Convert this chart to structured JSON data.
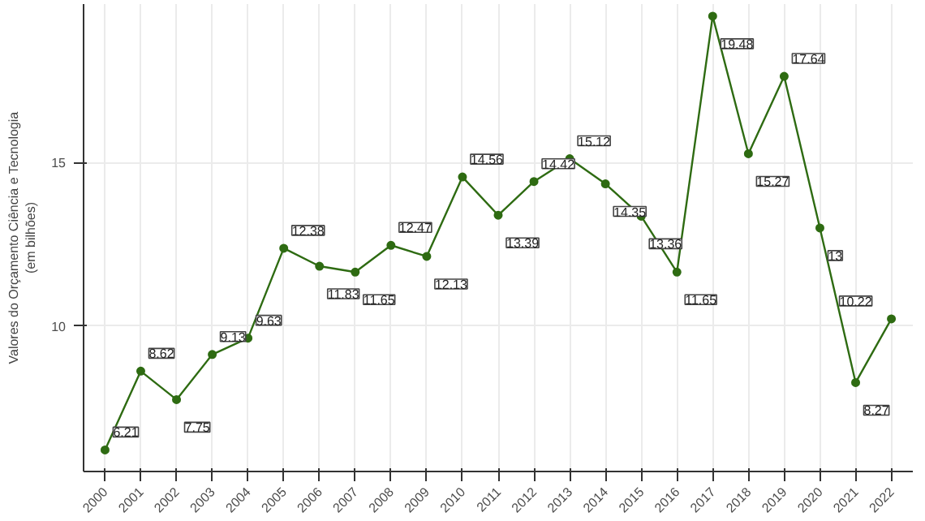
{
  "chart_data": {
    "type": "line",
    "ylabel": "Valores do Orçamento Ciência e Tecnologia\n(em bilhões)",
    "categories": [
      "2000",
      "2001",
      "2002",
      "2003",
      "2004",
      "2005",
      "2006",
      "2007",
      "2008",
      "2009",
      "2010",
      "2011",
      "2012",
      "2013",
      "2014",
      "2015",
      "2016",
      "2017",
      "2018",
      "2019",
      "2020",
      "2021",
      "2022"
    ],
    "series": [
      {
        "color": "#2e6b12",
        "values": [
          6.21,
          8.62,
          7.75,
          9.13,
          9.63,
          12.38,
          11.83,
          11.65,
          12.47,
          12.13,
          14.56,
          13.39,
          14.42,
          15.12,
          14.35,
          13.36,
          11.65,
          19.48,
          15.27,
          17.64,
          13,
          8.27,
          10.22
        ]
      }
    ],
    "ylim": [
      5.55,
      19.85
    ],
    "yticks": [
      10,
      15
    ],
    "grid": true,
    "marker": "circle",
    "line_style": "solid",
    "data_labels": true
  }
}
